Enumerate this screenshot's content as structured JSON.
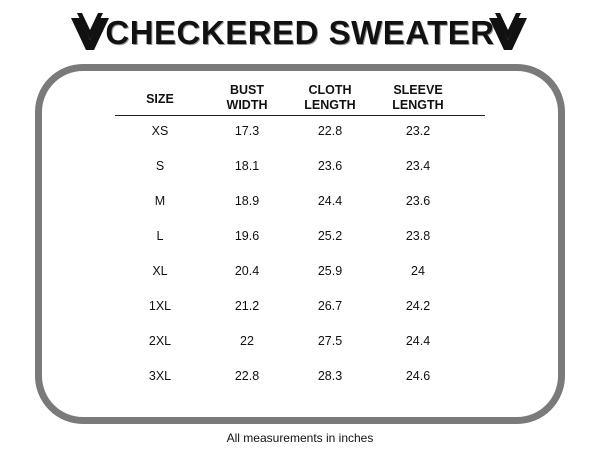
{
  "title": "CHECKERED SWEATER",
  "logo_icon": "double-v-chevron-icon",
  "columns": [
    {
      "line1": "SIZE",
      "line2": ""
    },
    {
      "line1": "BUST",
      "line2": "WIDTH"
    },
    {
      "line1": "CLOTH",
      "line2": "LENGTH"
    },
    {
      "line1": "SLEEVE",
      "line2": "LENGTH"
    }
  ],
  "rows": [
    [
      "XS",
      "17.3",
      "22.8",
      "23.2"
    ],
    [
      "S",
      "18.1",
      "23.6",
      "23.4"
    ],
    [
      "M",
      "18.9",
      "24.4",
      "23.6"
    ],
    [
      "L",
      "19.6",
      "25.2",
      "23.8"
    ],
    [
      "XL",
      "20.4",
      "25.9",
      "24"
    ],
    [
      "1XL",
      "21.2",
      "26.7",
      "24.2"
    ],
    [
      "2XL",
      "22",
      "27.5",
      "24.4"
    ],
    [
      "3XL",
      "22.8",
      "28.3",
      "24.6"
    ]
  ],
  "footer": "All measurements in inches",
  "colors": {
    "frame": "#7a7a7a",
    "text": "#111111"
  }
}
